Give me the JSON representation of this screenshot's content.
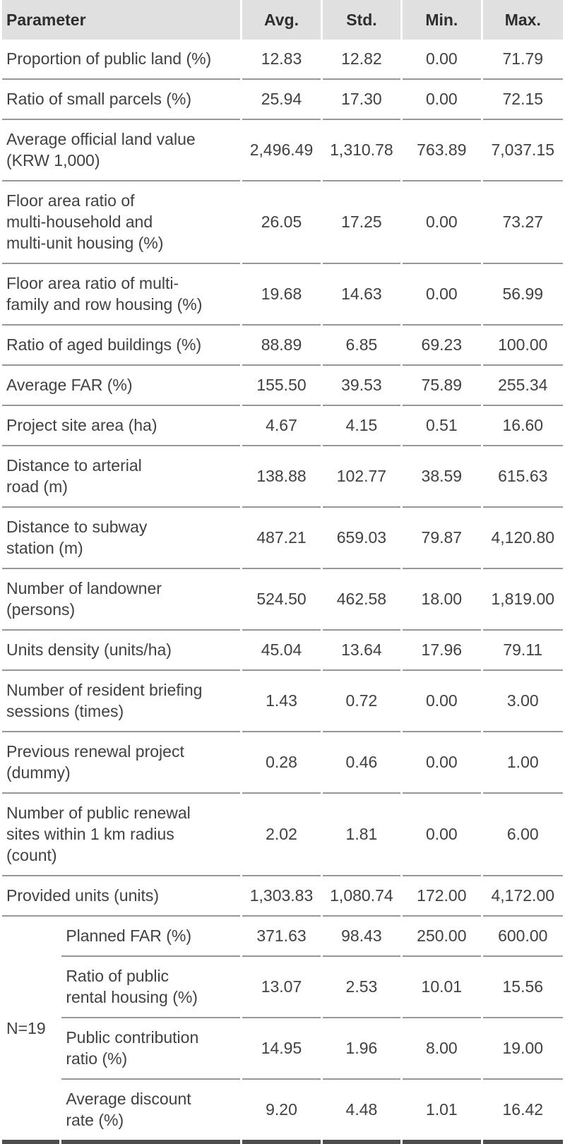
{
  "table": {
    "columns": [
      "Parameter",
      "Avg.",
      "Std.",
      "Min.",
      "Max."
    ],
    "rows": [
      {
        "label": "Proportion of public land (%)",
        "avg": "12.83",
        "std": "12.82",
        "min": "0.00",
        "max": "71.79"
      },
      {
        "label": "Ratio of small parcels (%)",
        "avg": "25.94",
        "std": "17.30",
        "min": "0.00",
        "max": "72.15"
      },
      {
        "label": "Average official land value\n(KRW 1,000)",
        "avg": "2,496.49",
        "std": "1,310.78",
        "min": "763.89",
        "max": "7,037.15"
      },
      {
        "label": "Floor area ratio of\nmulti-household and\nmulti-unit housing (%)",
        "avg": "26.05",
        "std": "17.25",
        "min": "0.00",
        "max": "73.27"
      },
      {
        "label": "Floor area ratio of multi-\nfamily and row housing (%)",
        "avg": "19.68",
        "std": "14.63",
        "min": "0.00",
        "max": "56.99"
      },
      {
        "label": "Ratio of aged buildings (%)",
        "avg": "88.89",
        "std": "6.85",
        "min": "69.23",
        "max": "100.00"
      },
      {
        "label": "Average FAR (%)",
        "avg": "155.50",
        "std": "39.53",
        "min": "75.89",
        "max": "255.34"
      },
      {
        "label": "Project site area (ha)",
        "avg": "4.67",
        "std": "4.15",
        "min": "0.51",
        "max": "16.60"
      },
      {
        "label": "Distance to arterial\nroad (m)",
        "avg": "138.88",
        "std": "102.77",
        "min": "38.59",
        "max": "615.63"
      },
      {
        "label": "Distance to subway\nstation (m)",
        "avg": "487.21",
        "std": "659.03",
        "min": "79.87",
        "max": "4,120.80"
      },
      {
        "label": "Number of landowner\n(persons)",
        "avg": "524.50",
        "std": "462.58",
        "min": "18.00",
        "max": "1,819.00"
      },
      {
        "label": "Units density (units/ha)",
        "avg": "45.04",
        "std": "13.64",
        "min": "17.96",
        "max": "79.11"
      },
      {
        "label": "Number of resident briefing\nsessions (times)",
        "avg": "1.43",
        "std": "0.72",
        "min": "0.00",
        "max": "3.00"
      },
      {
        "label": "Previous renewal project\n(dummy)",
        "avg": "0.28",
        "std": "0.46",
        "min": "0.00",
        "max": "1.00"
      },
      {
        "label": "Number of public renewal\nsites within 1 km radius\n(count)",
        "avg": "2.02",
        "std": "1.81",
        "min": "0.00",
        "max": "6.00"
      },
      {
        "label": "Provided units (units)",
        "avg": "1,303.83",
        "std": "1,080.74",
        "min": "172.00",
        "max": "4,172.00"
      }
    ],
    "group": {
      "label": "N=19",
      "rows": [
        {
          "label": "Planned FAR (%)",
          "avg": "371.63",
          "std": "98.43",
          "min": "250.00",
          "max": "600.00"
        },
        {
          "label": "Ratio of public\nrental housing (%)",
          "avg": "13.07",
          "std": "2.53",
          "min": "10.01",
          "max": "15.56"
        },
        {
          "label": "Public contribution\nratio (%)",
          "avg": "14.95",
          "std": "1.96",
          "min": "8.00",
          "max": "19.00"
        },
        {
          "label": "Average discount\nrate (%)",
          "avg": "9.20",
          "std": "4.48",
          "min": "1.01",
          "max": "16.42"
        }
      ]
    }
  },
  "colors": {
    "header_bg": "#e0e0e0",
    "divider": "#979797",
    "bottom_rule": "#4d4d4d",
    "header_text": "#2e2e2e",
    "body_text": "#414141"
  }
}
